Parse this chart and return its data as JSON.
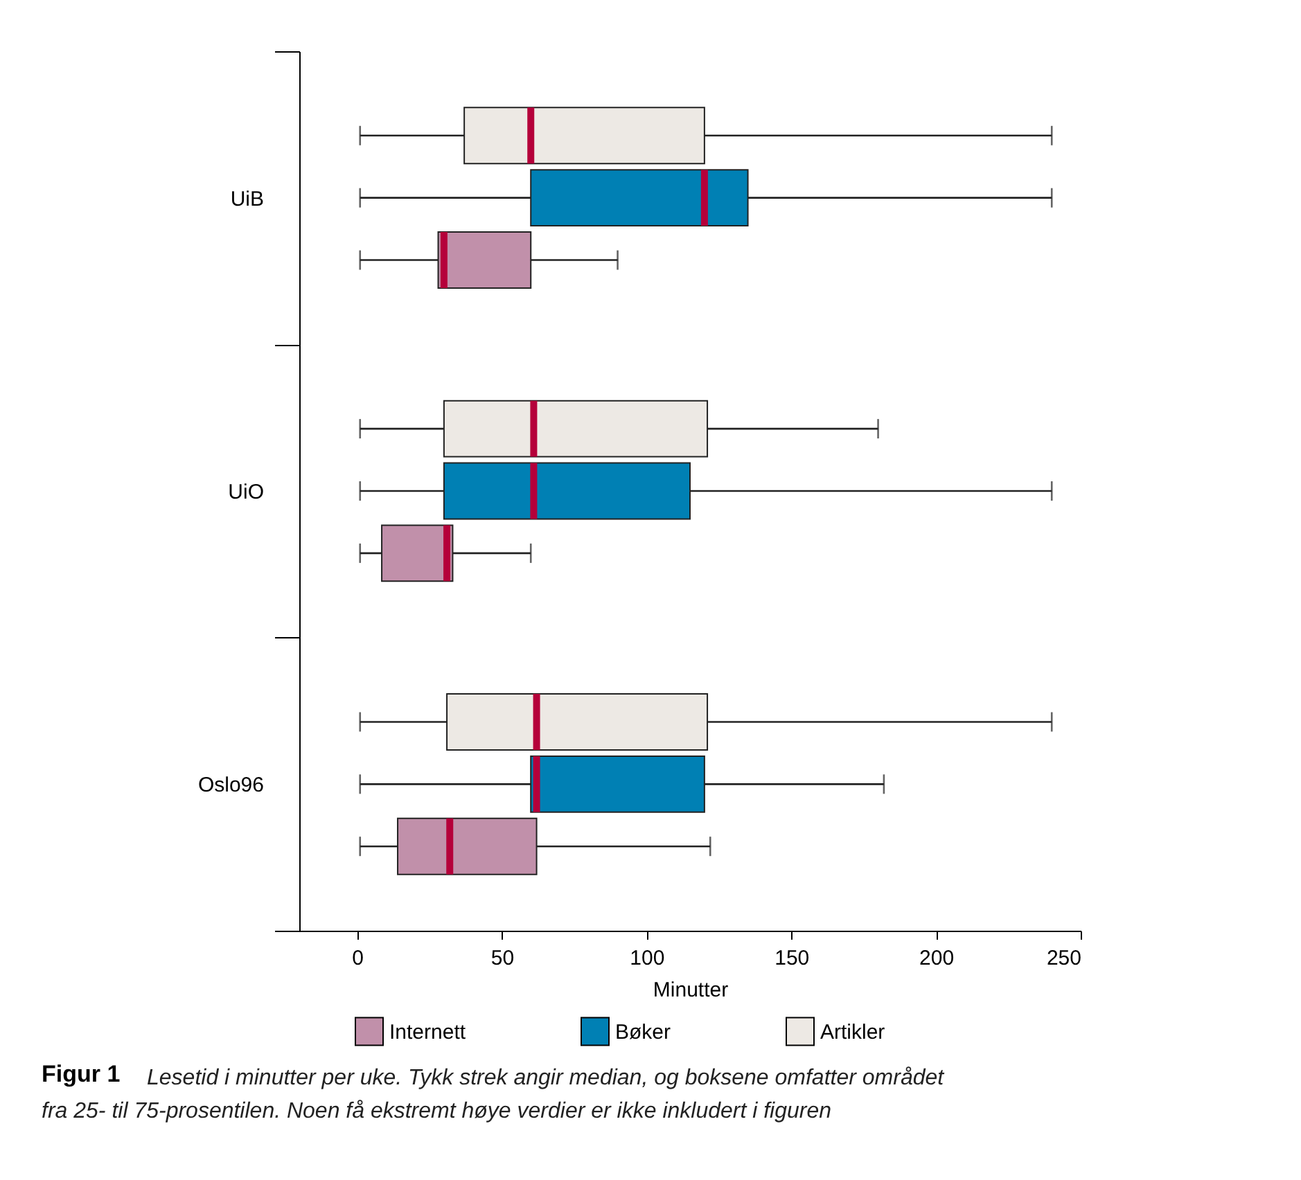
{
  "chart_data": {
    "type": "box",
    "categories": [
      "UiB",
      "UiO",
      "Oslo96"
    ],
    "xlabel": "Minutter",
    "orientation": "horizontal",
    "xlim": [
      -20,
      250
    ],
    "xticks": [
      0,
      50,
      100,
      150,
      200,
      250
    ],
    "grid": false,
    "legend": "bottom",
    "series": [
      {
        "name": "Internett",
        "color": "#c190aa",
        "boxes": [
          {
            "low": 1,
            "q1": 28,
            "median": 30,
            "q3": 60,
            "high": 90
          },
          {
            "low": 1,
            "q1": 8.5,
            "median": 31,
            "q3": 33,
            "high": 60
          },
          {
            "low": 1,
            "q1": 14,
            "median": 32,
            "q3": 62,
            "high": 122
          }
        ]
      },
      {
        "name": "Bøker",
        "color": "#0080b4",
        "boxes": [
          {
            "low": 1,
            "q1": 60,
            "median": 120,
            "q3": 135,
            "high": 240
          },
          {
            "low": 1,
            "q1": 30,
            "median": 61,
            "q3": 115,
            "high": 240
          },
          {
            "low": 1,
            "q1": 60,
            "median": 62,
            "q3": 120,
            "high": 182
          }
        ]
      },
      {
        "name": "Artikler",
        "color": "#ede9e4",
        "boxes": [
          {
            "low": 1,
            "q1": 37,
            "median": 60,
            "q3": 120,
            "high": 240
          },
          {
            "low": 1,
            "q1": 30,
            "median": 61,
            "q3": 121,
            "high": 180
          },
          {
            "low": 1,
            "q1": 31,
            "median": 62,
            "q3": 121,
            "high": 240
          }
        ]
      }
    ],
    "annotations": [
      "Figur 1",
      "Lesetid i minutter per uke. Tykk strek angir median, og boksene omfatter området fra 25- til 75-prosentilen. Noen få ekstremt høye verdier er ikke inkludert i figuren"
    ]
  }
}
